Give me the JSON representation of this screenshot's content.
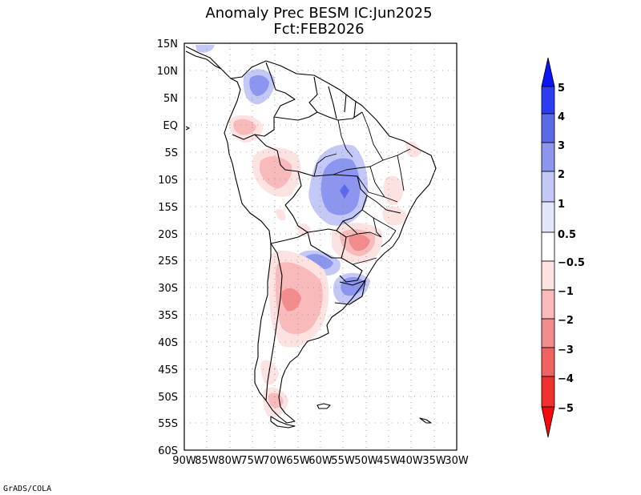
{
  "title": {
    "line1": "Anomaly Prec BESM IC:Jun2025",
    "line2": "Fct:FEB2026"
  },
  "lat_labels": [
    "15N",
    "10N",
    "5N",
    "EQ",
    "5S",
    "10S",
    "15S",
    "20S",
    "25S",
    "30S",
    "35S",
    "40S",
    "45S",
    "50S",
    "55S",
    "60S"
  ],
  "lon_labels": [
    "90W",
    "85W",
    "80W",
    "75W",
    "70W",
    "65W",
    "60W",
    "55W",
    "50W",
    "45W",
    "40W",
    "35W",
    "30W"
  ],
  "colorbar": {
    "labels": [
      "5",
      "4",
      "3",
      "2",
      "1",
      "0.5",
      "−0.5",
      "−1",
      "−2",
      "−3",
      "−4",
      "−5"
    ],
    "colors": {
      "b5": "#0a14f5",
      "b4": "#2d3cf0",
      "b3": "#5a6ae8",
      "b2": "#8c96ee",
      "b1": "#c3c8f6",
      "b05": "#e3e5fb",
      "neutral": "#ffffff",
      "r05": "#fde2e2",
      "r1": "#f8baba",
      "r2": "#f28c8c",
      "r3": "#ee6262",
      "r4": "#f03030",
      "r5": "#f40a0a"
    }
  },
  "footer": "GrADS/COLA"
}
